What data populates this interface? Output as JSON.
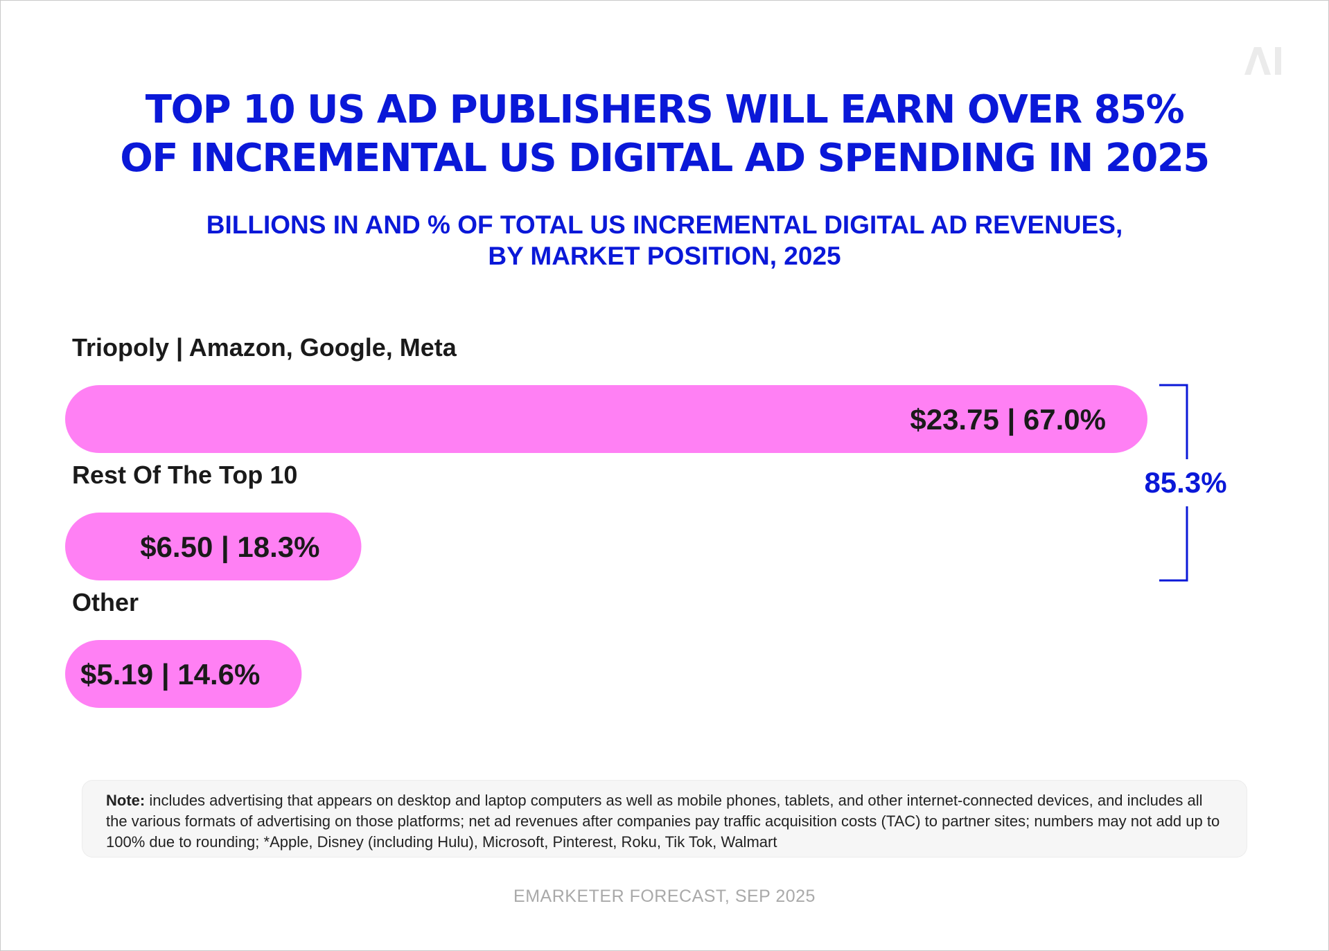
{
  "logo_text": "AI",
  "chart_data": {
    "type": "bar",
    "orientation": "horizontal",
    "title": "TOP 10 US AD PUBLISHERS WILL EARN OVER 85% OF INCREMENTAL US DIGITAL AD SPENDING IN 2025",
    "title_lines": [
      "TOP 10 US AD PUBLISHERS WILL EARN OVER 85%",
      "OF INCREMENTAL US DIGITAL AD SPENDING IN 2025"
    ],
    "subtitle_lines": [
      "BILLIONS IN AND % OF TOTAL US INCREMENTAL DIGITAL AD REVENUES,",
      "BY MARKET POSITION, 2025"
    ],
    "categories": [
      "Triopoly | Amazon, Google, Meta",
      "Rest Of The Top 10",
      "Other"
    ],
    "values": [
      23.75,
      6.5,
      5.19
    ],
    "percents": [
      67.0,
      18.3,
      14.6
    ],
    "data_labels": [
      "$23.75 | 67.0%",
      "$6.50 | 18.3%",
      "$5.19 | 14.6%"
    ],
    "bracket_label": "85.3%",
    "bar_color": "#ff80f4",
    "accent_color": "#0a18d8",
    "grid": false,
    "legend": "none"
  },
  "note": {
    "label": "Note:",
    "text": " includes advertising that appears on desktop and laptop computers as well as mobile phones, tablets, and other internet-connected devices, and includes all the various formats of advertising on those platforms; net ad revenues after companies pay traffic acquisition costs (TAC) to partner sites; numbers may not add up to 100% due to rounding; *Apple, Disney (including Hulu), Microsoft, Pinterest, Roku, Tik Tok, Walmart"
  },
  "source": "EMARKETER FORECAST, SEP 2025"
}
